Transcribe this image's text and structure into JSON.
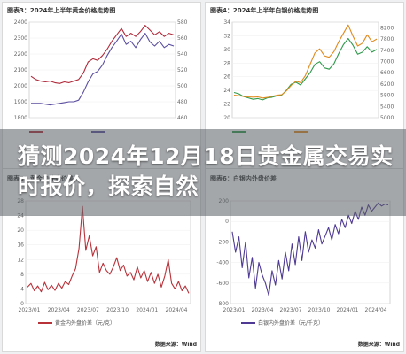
{
  "headline": "猜测2024年12月18日贵金属交易实时报价，探索自然",
  "chart_data": [
    {
      "type": "line",
      "title": "图表3：2024年上半年黄金价格走势图",
      "source": "",
      "ylim_left": [
        1800,
        2400
      ],
      "ylim_right": [
        460,
        580
      ],
      "yticks_left": [
        1800,
        1900,
        2000,
        2100,
        2200,
        2300,
        2400
      ],
      "yticks_right": [
        460,
        480,
        500,
        520,
        540,
        560,
        580
      ],
      "legend": [
        "",
        ""
      ],
      "series": [
        {
          "name": "",
          "axis": "left",
          "color": "#b02a3a",
          "values": [
            2060,
            2040,
            2030,
            2025,
            2030,
            2020,
            2015,
            2025,
            2020,
            2030,
            2040,
            2080,
            2150,
            2170,
            2160,
            2190,
            2230,
            2280,
            2320,
            2360,
            2310,
            2330,
            2310,
            2340,
            2380,
            2350,
            2320,
            2340,
            2310,
            2330,
            2320
          ]
        },
        {
          "name": "",
          "axis": "right",
          "color": "#5b4fa0",
          "values": [
            478,
            478,
            478,
            477,
            476,
            477,
            478,
            479,
            480,
            480,
            482,
            492,
            505,
            515,
            518,
            526,
            538,
            548,
            556,
            565,
            552,
            556,
            548,
            558,
            566,
            555,
            550,
            556,
            548,
            552,
            550
          ]
        }
      ]
    },
    {
      "type": "line",
      "title": "图表4：2024年上半年白银价格走势图",
      "source": "",
      "ylim_left": [
        20,
        34
      ],
      "ylim_right": [
        5000,
        8400
      ],
      "yticks_left": [
        20,
        22,
        24,
        26,
        28,
        30,
        32,
        34
      ],
      "yticks_right": [
        5000,
        5400,
        5800,
        6200,
        6600,
        7000,
        7400,
        7800,
        8200
      ],
      "legend": [
        "",
        ""
      ],
      "series": [
        {
          "name": "",
          "axis": "left",
          "color": "#2e9a4a",
          "values": [
            23.7,
            23.5,
            23.1,
            22.9,
            22.7,
            22.8,
            22.6,
            22.9,
            23.0,
            23.2,
            23.3,
            24.0,
            24.9,
            25.2,
            24.8,
            25.7,
            26.6,
            27.8,
            28.2,
            27.3,
            27.1,
            27.9,
            29.4,
            30.7,
            31.6,
            30.6,
            29.3,
            29.6,
            30.4,
            29.6,
            30.0
          ]
        },
        {
          "name": "",
          "axis": "right",
          "color": "#e08a1e",
          "values": [
            5800,
            5780,
            5760,
            5740,
            5730,
            5740,
            5700,
            5720,
            5760,
            5800,
            5820,
            5950,
            6150,
            6300,
            6250,
            6500,
            6900,
            7300,
            7450,
            7200,
            7150,
            7350,
            7700,
            8000,
            8300,
            7900,
            7550,
            7650,
            7950,
            7700,
            7800
          ]
        }
      ]
    },
    {
      "type": "line",
      "title": "图表5：黄金内外盘价差",
      "source": "数据来源：Wind",
      "ylim": [
        0,
        28
      ],
      "yticks": [
        0,
        4,
        8,
        12,
        16,
        20,
        24,
        28
      ],
      "xticks": [
        "2023/01",
        "2023/04",
        "2023/07",
        "2023/10",
        "2024/01",
        "2024/04"
      ],
      "legend": [
        "黄金内外盘价差（元/克）"
      ],
      "series": [
        {
          "name": "黄金内外盘价差（元/克）",
          "color": "#b8323a",
          "values": [
            4.5,
            5.5,
            3.5,
            4.8,
            3.2,
            5.8,
            3.8,
            5.0,
            3.6,
            5.5,
            4.2,
            6.0,
            5.2,
            7.5,
            9.5,
            15.0,
            26.5,
            14.5,
            18.5,
            13.0,
            15.5,
            8.5,
            11.0,
            9.0,
            8.0,
            10.0,
            12.5,
            9.0,
            10.5,
            7.5,
            8.5,
            6.5,
            10.0,
            7.0,
            9.0,
            6.0,
            8.5,
            5.5,
            8.0,
            4.5,
            7.5,
            12.0,
            5.5,
            4.0,
            6.0,
            3.5,
            4.8,
            2.8
          ]
        }
      ]
    },
    {
      "type": "line",
      "title": "图表6：白银内外盘价差",
      "source": "数据来源：Wind",
      "ylim": [
        -800,
        200
      ],
      "yticks": [
        -800,
        -600,
        -400,
        -200,
        0,
        200
      ],
      "xticks": [
        "2023/01",
        "2023/04",
        "2023/07",
        "2023/10",
        "2024/01",
        "2024/04"
      ],
      "legend": [
        "白银内外盘价差（元/千克）"
      ],
      "series": [
        {
          "name": "白银内外盘价差（元/千克）",
          "color": "#4e3a94",
          "values": [
            -100,
            -300,
            -150,
            -450,
            -200,
            -550,
            -350,
            -650,
            -400,
            -520,
            -600,
            -720,
            -480,
            -620,
            -380,
            -560,
            -300,
            -480,
            -220,
            -420,
            -150,
            -380,
            -100,
            -300,
            -180,
            -260,
            -80,
            -220,
            -140,
            -60,
            -180,
            -30,
            -120,
            20,
            -60,
            60,
            -20,
            100,
            20,
            140,
            60,
            160,
            100,
            140,
            180,
            150,
            170,
            160
          ]
        }
      ]
    }
  ]
}
